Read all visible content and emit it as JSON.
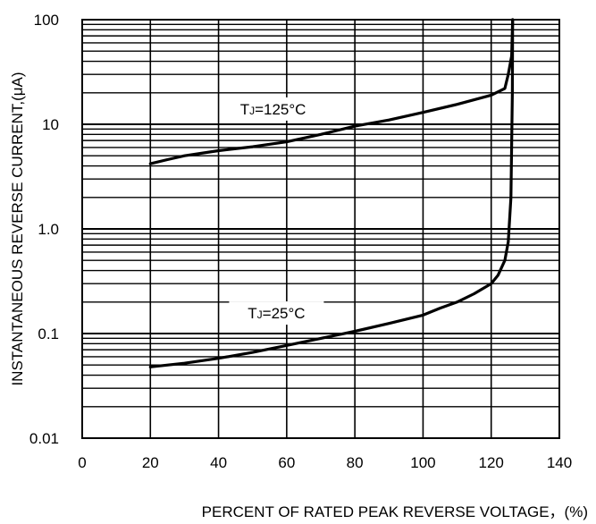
{
  "chart_data": {
    "type": "line",
    "title": "",
    "xlabel": "PERCENT OF RATED PEAK REVERSE VOLTAGE，(%)",
    "ylabel": "INSTANTANEOUS REVERSE CURRENT,(μA)",
    "xlim": [
      0,
      140
    ],
    "ylim": [
      0.01,
      100
    ],
    "yscale": "log",
    "grid": true,
    "x_ticks": [
      "0",
      "20",
      "40",
      "60",
      "80",
      "100",
      "120",
      "140"
    ],
    "y_ticks": [
      "0.01",
      "0.1",
      "1.0",
      "10",
      "100"
    ],
    "series": [
      {
        "name": "TJ=125°C",
        "label_main": "T",
        "label_sub": "J",
        "label_rest": "=125°C",
        "x": [
          20,
          25,
          30,
          40,
          50,
          60,
          70,
          80,
          90,
          100,
          110,
          120,
          124,
          125,
          126,
          126.3
        ],
        "y": [
          4.2,
          4.6,
          5.0,
          5.6,
          6.1,
          6.8,
          8.0,
          9.6,
          11.0,
          13.0,
          15.5,
          19.0,
          22.0,
          30.0,
          45.0,
          100.0
        ]
      },
      {
        "name": "TJ=25°C",
        "label_main": "T",
        "label_sub": "J",
        "label_rest": "=25°C",
        "x": [
          20,
          30,
          40,
          50,
          60,
          70,
          80,
          90,
          100,
          105,
          110,
          115,
          120,
          122,
          124,
          125,
          125.8,
          126.2,
          126.3
        ],
        "y": [
          0.048,
          0.052,
          0.058,
          0.066,
          0.077,
          0.09,
          0.105,
          0.125,
          0.15,
          0.175,
          0.2,
          0.24,
          0.3,
          0.36,
          0.5,
          0.75,
          2.0,
          20.0,
          100.0
        ]
      }
    ]
  }
}
